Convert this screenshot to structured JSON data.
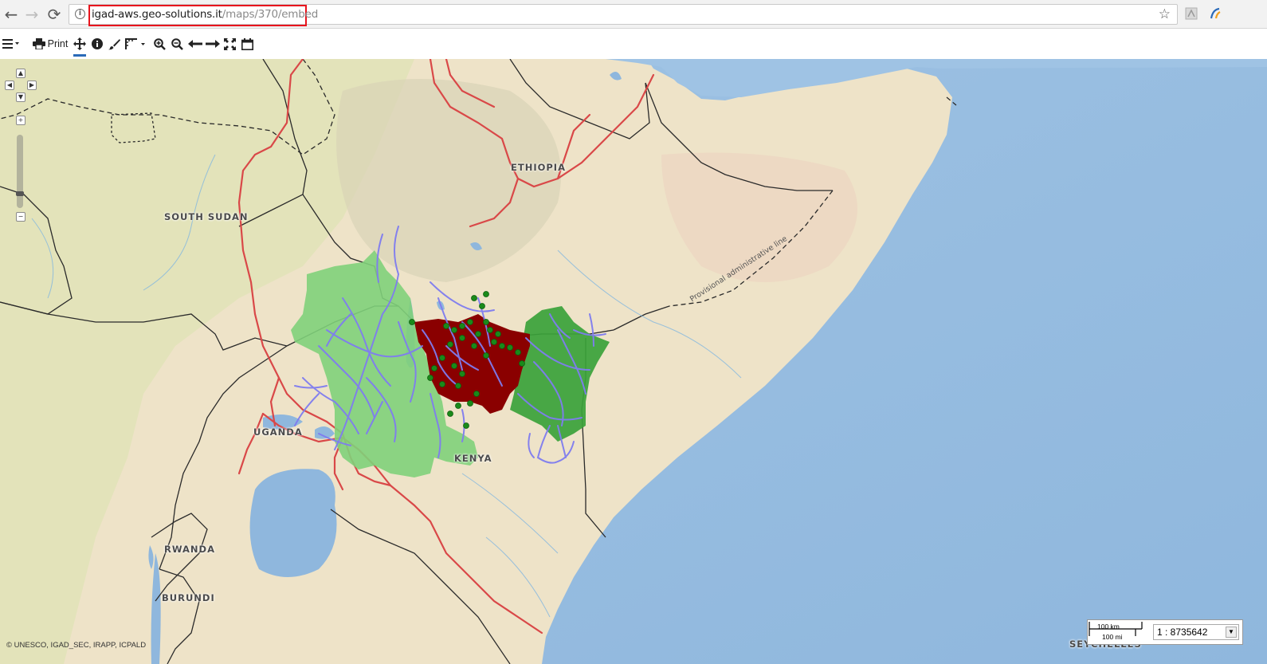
{
  "browser": {
    "url_host": "igad-aws.geo-solutions.it",
    "url_path": "/maps/370/embed",
    "url_highlight_color": "#e8141d",
    "icons": [
      "back-icon",
      "forward-icon",
      "reload-icon",
      "info-icon",
      "star-icon",
      "pdf-extension-icon",
      "translate-extension-icon"
    ]
  },
  "toolbar": {
    "print_label": "Print",
    "tools": [
      "menu-icon",
      "print-icon",
      "pan-icon",
      "info-icon",
      "brush-icon",
      "measure-icon",
      "zoom-in-icon",
      "zoom-out-icon",
      "previous-extent-icon",
      "next-extent-icon",
      "full-extent-icon",
      "calendar-icon"
    ],
    "active_tool": "pan-icon"
  },
  "map": {
    "country_labels": {
      "ethiopia": "ETHIOPIA",
      "south_sudan": "SOUTH SUDAN",
      "uganda": "UGANDA",
      "kenya": "KENYA",
      "rwanda": "RWANDA",
      "burundi": "BURUNDI",
      "seychelles": "SEYCHELLES"
    },
    "line_label": "Provisional administrative line",
    "attribution": "© UNESCO, IGAD_SEC, IRAPP, ICPALD",
    "layer_colors": {
      "sea": "#a9c9e6",
      "land": "#f1e6cf",
      "roads": "#d94848",
      "rivers": "#7f7cf0",
      "region_light_green": "#7fd07a",
      "region_green": "#3aa23a",
      "region_dark_red": "#8a0000",
      "points": "#1a8a1a"
    }
  },
  "scale": {
    "km_label": "100 km",
    "mi_label": "100 mi",
    "ratio": "1 : 8735642"
  }
}
